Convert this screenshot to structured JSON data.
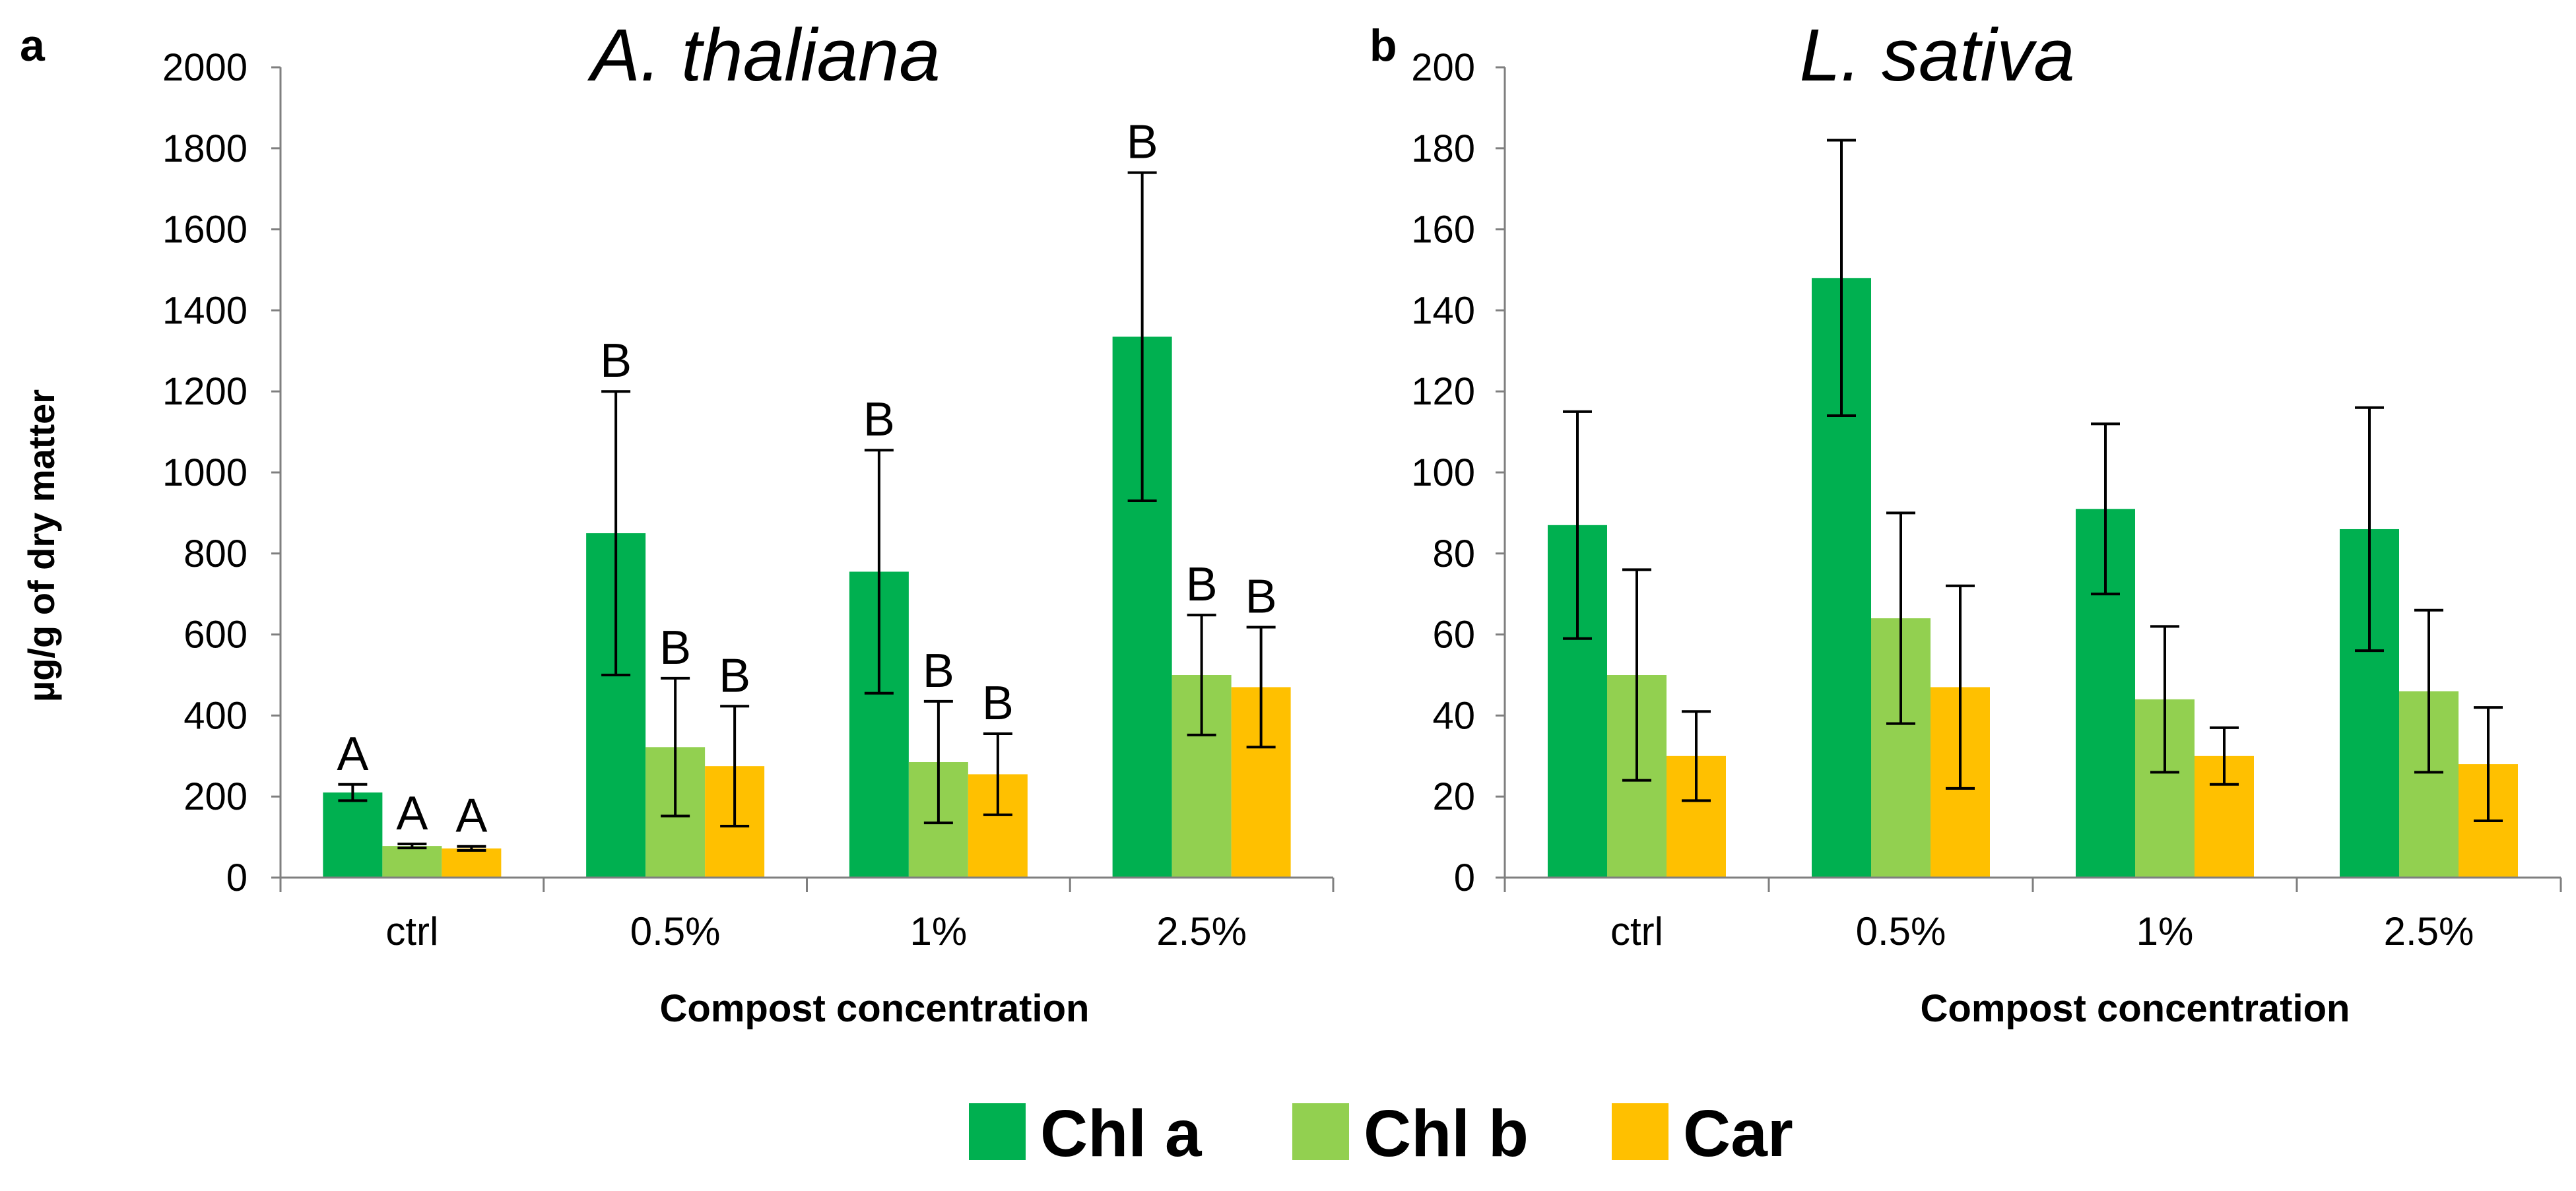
{
  "colors": {
    "chla": "#00b050",
    "chlb": "#92d050",
    "car": "#ffc000",
    "axis": "#7f7f7f",
    "error": "#000000"
  },
  "legend": [
    {
      "key": "chla",
      "label": "Chl a"
    },
    {
      "key": "chlb",
      "label": "Chl b"
    },
    {
      "key": "car",
      "label": "Car"
    }
  ],
  "chart_data": [
    {
      "type": "bar",
      "panel": "a",
      "title": "A. thaliana",
      "xlabel": "Compost concentration",
      "ylabel": "µg/g of dry matter",
      "ylim": [
        0,
        2000
      ],
      "yticks": [
        0,
        200,
        400,
        600,
        800,
        1000,
        1200,
        1400,
        1600,
        1800,
        2000
      ],
      "categories": [
        "ctrl",
        "0.5%",
        "1%",
        "2.5%"
      ],
      "series": [
        {
          "name": "Chl a",
          "key": "chla",
          "values": [
            210,
            850,
            755,
            1335
          ],
          "errors": [
            20,
            350,
            300,
            405
          ],
          "letters": [
            "A",
            "B",
            "B",
            "B"
          ]
        },
        {
          "name": "Chl b",
          "key": "chlb",
          "values": [
            78,
            322,
            285,
            500
          ],
          "errors": [
            5,
            170,
            150,
            148
          ],
          "letters": [
            "A",
            "B",
            "B",
            "B"
          ]
        },
        {
          "name": "Car",
          "key": "car",
          "values": [
            72,
            275,
            255,
            470
          ],
          "errors": [
            5,
            148,
            100,
            148
          ],
          "letters": [
            "A",
            "B",
            "B",
            "B"
          ]
        }
      ]
    },
    {
      "type": "bar",
      "panel": "b",
      "title": "L. sativa",
      "xlabel": "Compost concentration",
      "ylim": [
        0,
        200
      ],
      "yticks": [
        0,
        20,
        40,
        60,
        80,
        100,
        120,
        140,
        160,
        180,
        200
      ],
      "categories": [
        "ctrl",
        "0.5%",
        "1%",
        "2.5%"
      ],
      "series": [
        {
          "name": "Chl a",
          "key": "chla",
          "values": [
            87,
            148,
            91,
            86
          ],
          "errors": [
            28,
            34,
            21,
            30
          ]
        },
        {
          "name": "Chl b",
          "key": "chlb",
          "values": [
            50,
            64,
            44,
            46
          ],
          "errors": [
            26,
            26,
            18,
            20
          ]
        },
        {
          "name": "Car",
          "key": "car",
          "values": [
            30,
            47,
            30,
            28
          ],
          "errors": [
            11,
            25,
            7,
            14
          ]
        }
      ]
    }
  ]
}
